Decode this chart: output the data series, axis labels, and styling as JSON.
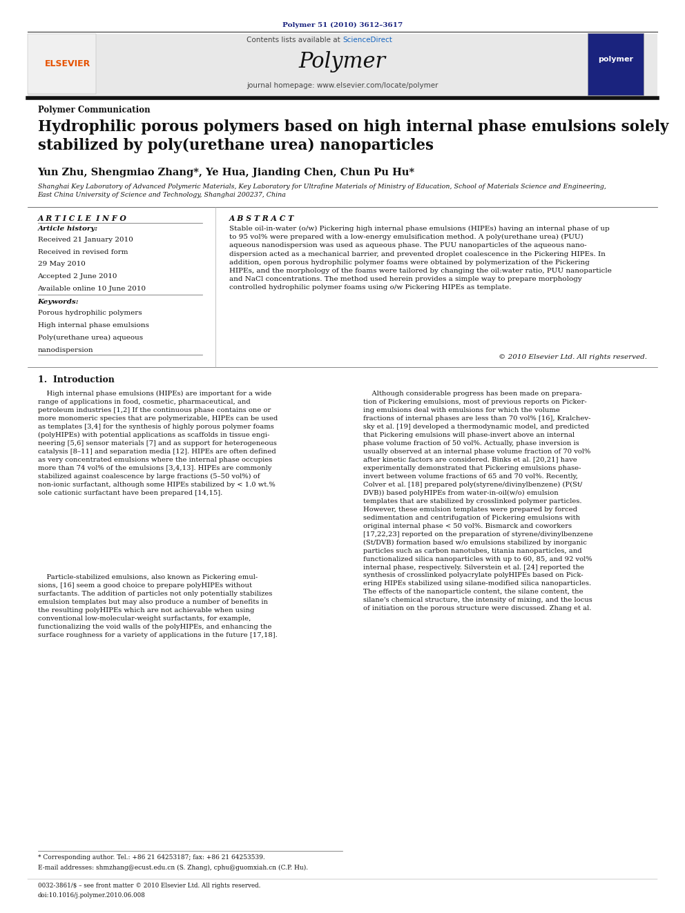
{
  "page_width": 9.92,
  "page_height": 13.23,
  "bg_color": "#ffffff",
  "header_citation": "Polymer 51 (2010) 3612–3617",
  "header_citation_color": "#1a237e",
  "journal_name": "Polymer",
  "contents_line_pre": "Contents lists available at ",
  "contents_sciencedirect": "ScienceDirect",
  "sciencedirect_color": "#1565c0",
  "journal_homepage": "journal homepage: www.elsevier.com/locate/polymer",
  "section_label": "Polymer Communication",
  "article_title": "Hydrophilic porous polymers based on high internal phase emulsions solely\nstabilized by poly(urethane urea) nanoparticles",
  "authors": "Yun Zhu, Shengmiao Zhang*, Ye Hua, Jianding Chen, Chun Pu Hu*",
  "affiliation": "Shanghai Key Laboratory of Advanced Polymeric Materials, Key Laboratory for Ultrafine Materials of Ministry of Education, School of Materials Science and Engineering,\nEast China University of Science and Technology, Shanghai 200237, China",
  "article_info_title": "A R T I C L E  I N F O",
  "abstract_title": "A B S T R A C T",
  "article_history_label": "Article history:",
  "received1": "Received 21 January 2010",
  "received2": "Received in revised form",
  "received2b": "29 May 2010",
  "accepted": "Accepted 2 June 2010",
  "available": "Available online 10 June 2010",
  "keywords_label": "Keywords:",
  "kw1": "Porous hydrophilic polymers",
  "kw2": "High internal phase emulsions",
  "kw3": "Poly(urethane urea) aqueous",
  "kw4": "nanodispersion",
  "abstract_text": "Stable oil-in-water (o/w) Pickering high internal phase emulsions (HIPEs) having an internal phase of up\nto 95 vol% were prepared with a low-energy emulsification method. A poly(urethane urea) (PUU)\naqueous nanodispersion was used as aqueous phase. The PUU nanoparticles of the aqueous nano-\ndispersion acted as a mechanical barrier, and prevented droplet coalescence in the Pickering HIPEs. In\naddition, open porous hydrophilic polymer foams were obtained by polymerization of the Pickering\nHIPEs, and the morphology of the foams were tailored by changing the oil:water ratio, PUU nanoparticle\nand NaCl concentrations. The method used herein provides a simple way to prepare morphology\ncontrolled hydrophilic polymer foams using o/w Pickering HIPEs as template.",
  "copyright": "© 2010 Elsevier Ltd. All rights reserved.",
  "intro_heading": "1.  Introduction",
  "intro_col1_p1": "    High internal phase emulsions (HIPEs) are important for a wide\nrange of applications in food, cosmetic, pharmaceutical, and\npetroleum industries [1,2] If the continuous phase contains one or\nmore monomeric species that are polymerizable, HIPEs can be used\nas templates [3,4] for the synthesis of highly porous polymer foams\n(polyHIPEs) with potential applications as scaffolds in tissue engi-\nneering [5,6] sensor materials [7] and as support for heterogeneous\ncatalysis [8–11] and separation media [12]. HIPEs are often defined\nas very concentrated emulsions where the internal phase occupies\nmore than 74 vol% of the emulsions [3,4,13]. HIPEs are commonly\nstabilized against coalescence by large fractions (5–50 vol%) of\nnon-ionic surfactant, although some HIPEs stabilized by < 1.0 wt.%\nsole cationic surfactant have been prepared [14,15].",
  "intro_col1_p2": "    Particle-stabilized emulsions, also known as Pickering emul-\nsions, [16] seem a good choice to prepare polyHIPEs without\nsurfactants. The addition of particles not only potentially stabilizes\nemulsion templates but may also produce a number of benefits in\nthe resulting polyHIPEs which are not achievable when using\nconventional low-molecular-weight surfactants, for example,\nfunctionalizing the void walls of the polyHIPEs, and enhancing the\nsurface roughness for a variety of applications in the future [17,18].",
  "intro_col2": "    Although considerable progress has been made on prepara-\ntion of Pickering emulsions, most of previous reports on Picker-\ning emulsions deal with emulsions for which the volume\nfractions of internal phases are less than 70 vol% [16], Kralchev-\nsky et al. [19] developed a thermodynamic model, and predicted\nthat Pickering emulsions will phase-invert above an internal\nphase volume fraction of 50 vol%. Actually, phase inversion is\nusually observed at an internal phase volume fraction of 70 vol%\nafter kinetic factors are considered. Binks et al. [20,21] have\nexperimentally demonstrated that Pickering emulsions phase-\ninvert between volume fractions of 65 and 70 vol%. Recently,\nColver et al. [18] prepared poly(styrene/divinylbenzene) (P(St/\nDVB)) based polyHIPEs from water-in-oil(w/o) emulsion\ntemplates that are stabilized by crosslinked polymer particles.\nHowever, these emulsion templates were prepared by forced\nsedimentation and centrifugation of Pickering emulsions with\noriginal internal phase < 50 vol%. Bismarck and coworkers\n[17,22,23] reported on the preparation of styrene/divinylbenzene\n(St/DVB) formation based w/o emulsions stabilized by inorganic\nparticles such as carbon nanotubes, titania nanoparticles, and\nfunctionalized silica nanoparticles with up to 60, 85, and 92 vol%\ninternal phase, respectively. Silverstein et al. [24] reported the\nsynthesis of crosslinked polyacrylate polyHIPEs based on Pick-\nering HIPEs stabilized using silane-modified silica nanoparticles.\nThe effects of the nanoparticle content, the silane content, the\nsilane's chemical structure, the intensity of mixing, and the locus\nof initiation on the porous structure were discussed. Zhang et al.",
  "footer_line1": "* Corresponding author. Tel.: +86 21 64253187; fax: +86 21 64253539.",
  "footer_line2": "E-mail addresses: shmzhang@ecust.edu.cn (S. Zhang), cphu@guomxiah.cn (C.P. Hu).",
  "footer_issn": "0032-3861/$ – see front matter © 2010 Elsevier Ltd. All rights reserved.",
  "footer_doi": "doi:10.1016/j.polymer.2010.06.008",
  "elsevier_color": "#e65100",
  "gray_header_bg": "#e8e8e8"
}
